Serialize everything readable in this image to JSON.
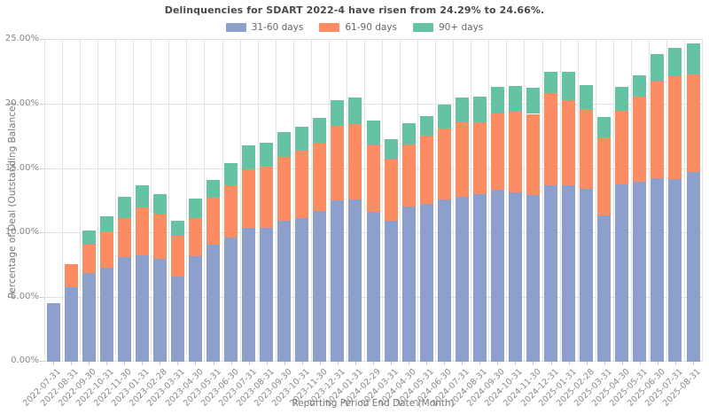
{
  "chart_data": {
    "type": "bar",
    "stacked": true,
    "title": "Delinquencies for SDART 2022-4 have risen from 24.29% to 24.66%.",
    "xlabel": "Reporting Period End Date (Month)",
    "ylabel": "Percentage of Deal (Outstanding Balance)",
    "unit": "percent",
    "ylim": [
      0,
      25
    ],
    "grid": true,
    "legend_position": "top-center",
    "y_tick_values": [
      0,
      5,
      10,
      15,
      20,
      25
    ],
    "y_tick_labels": [
      "0.00%",
      "5.00%",
      "10.00%",
      "15.00%",
      "20.00%",
      "25.00%"
    ],
    "categories": [
      "2022-07-31",
      "2022-08-31",
      "2022-09-30",
      "2022-10-31",
      "2022-11-30",
      "2023-01-31",
      "2023-02-28",
      "2023-03-31",
      "2023-04-30",
      "2023-05-31",
      "2023-06-30",
      "2023-07-31",
      "2023-08-31",
      "2023-09-30",
      "2023-10-31",
      "2023-11-30",
      "2023-12-31",
      "2024-01-31",
      "2024-02-29",
      "2024-03-31",
      "2024-04-30",
      "2024-05-31",
      "2024-06-30",
      "2024-07-31",
      "2024-08-31",
      "2024-09-30",
      "2024-10-31",
      "2024-11-30",
      "2024-12-31",
      "2025-01-31",
      "2025-02-28",
      "2025-03-31",
      "2025-04-30",
      "2025-05-31",
      "2025-06-30",
      "2025-07-31",
      "2025-08-31"
    ],
    "series": [
      {
        "name": "31-60 days",
        "color": "#8DA0CB",
        "values": [
          4.55,
          5.8,
          6.85,
          7.3,
          8.1,
          8.25,
          8.0,
          6.6,
          8.15,
          9.05,
          9.65,
          10.35,
          10.4,
          10.95,
          11.1,
          11.7,
          12.5,
          12.55,
          11.6,
          10.9,
          12.05,
          12.25,
          12.6,
          12.75,
          13.0,
          13.3,
          13.15,
          12.9,
          13.7,
          13.65,
          13.4,
          11.35,
          13.75,
          13.95,
          14.2,
          14.15,
          14.7
        ]
      },
      {
        "name": "61-90 days",
        "color": "#FC8D62",
        "values": [
          0,
          1.75,
          2.2,
          2.8,
          3.0,
          3.7,
          3.5,
          3.15,
          3.0,
          3.65,
          4.0,
          4.55,
          4.7,
          4.95,
          5.25,
          5.25,
          5.8,
          5.85,
          5.15,
          4.75,
          4.75,
          5.3,
          5.5,
          5.8,
          5.55,
          5.95,
          6.25,
          6.3,
          7.1,
          6.6,
          6.2,
          6.05,
          5.7,
          6.6,
          7.5,
          7.95,
          7.55
        ]
      },
      {
        "name": "90+ days",
        "color": "#66C2A5",
        "values": [
          0,
          0,
          1.1,
          1.15,
          1.65,
          1.7,
          1.5,
          1.2,
          1.5,
          1.35,
          1.75,
          1.85,
          1.85,
          1.9,
          1.85,
          1.95,
          1.95,
          2.05,
          1.9,
          1.6,
          1.7,
          1.5,
          1.8,
          1.9,
          2.0,
          2.05,
          1.95,
          2.05,
          1.65,
          2.2,
          1.85,
          1.55,
          1.85,
          1.65,
          2.1,
          2.19,
          2.41
        ]
      }
    ],
    "annotations": {
      "previous_total": "24.29%",
      "current_total": "24.66%"
    }
  }
}
